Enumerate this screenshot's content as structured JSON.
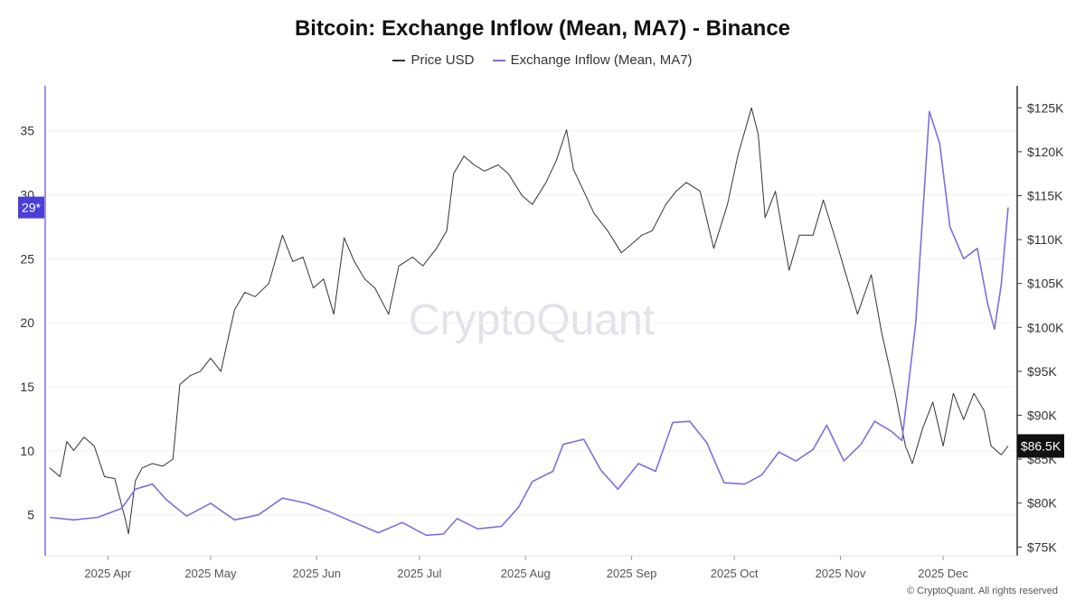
{
  "title": "Bitcoin: Exchange Inflow (Mean, MA7) - Binance",
  "legend": [
    {
      "label": "Price USD",
      "color": "#333333"
    },
    {
      "label": "Exchange Inflow (Mean, MA7)",
      "color": "#7b6fe0"
    }
  ],
  "watermark": "CryptoQuant",
  "copyright": "© CryptoQuant. All rights reserved",
  "chart_data": {
    "type": "line",
    "title": "Bitcoin: Exchange Inflow (Mean, MA7) - Binance",
    "x_range": [
      "2025-03-15",
      "2025-12-20"
    ],
    "x_tick_labels": [
      "2025 Apr",
      "2025 May",
      "2025 Jun",
      "2025 Jul",
      "2025 Aug",
      "2025 Sep",
      "2025 Oct",
      "2025 Nov",
      "2025 Dec"
    ],
    "x_tick_dates": [
      "2025-04-01",
      "2025-05-01",
      "2025-06-01",
      "2025-07-01",
      "2025-08-01",
      "2025-09-01",
      "2025-10-01",
      "2025-11-01",
      "2025-12-01"
    ],
    "left_axis": {
      "ticks": [
        5,
        10,
        15,
        20,
        25,
        30,
        35
      ],
      "ylim": [
        1.8,
        38.5
      ],
      "current_label": "29*",
      "current_value": 29
    },
    "right_axis": {
      "ticks": [
        75000,
        80000,
        85000,
        90000,
        95000,
        100000,
        105000,
        110000,
        115000,
        120000,
        125000
      ],
      "tick_labels": [
        "$75K",
        "$80K",
        "$85K",
        "$90K",
        "$95K",
        "$100K",
        "$105K",
        "$110K",
        "$115K",
        "$120K",
        "$125K"
      ],
      "ylim": [
        74000,
        127500
      ],
      "current_label": "$86.5K",
      "current_value": 86500
    },
    "series": [
      {
        "name": "Price USD",
        "axis": "right",
        "color": "#333333",
        "points": [
          [
            "2025-03-15",
            84000
          ],
          [
            "2025-03-18",
            83000
          ],
          [
            "2025-03-20",
            87000
          ],
          [
            "2025-03-22",
            86000
          ],
          [
            "2025-03-25",
            87500
          ],
          [
            "2025-03-28",
            86500
          ],
          [
            "2025-03-31",
            83000
          ],
          [
            "2025-04-03",
            82800
          ],
          [
            "2025-04-06",
            78300
          ],
          [
            "2025-04-07",
            76500
          ],
          [
            "2025-04-09",
            82500
          ],
          [
            "2025-04-11",
            84000
          ],
          [
            "2025-04-14",
            84500
          ],
          [
            "2025-04-17",
            84200
          ],
          [
            "2025-04-20",
            85000
          ],
          [
            "2025-04-22",
            93500
          ],
          [
            "2025-04-25",
            94500
          ],
          [
            "2025-04-28",
            95000
          ],
          [
            "2025-05-01",
            96500
          ],
          [
            "2025-05-04",
            95000
          ],
          [
            "2025-05-08",
            102000
          ],
          [
            "2025-05-11",
            104000
          ],
          [
            "2025-05-14",
            103500
          ],
          [
            "2025-05-18",
            105000
          ],
          [
            "2025-05-22",
            110500
          ],
          [
            "2025-05-25",
            107500
          ],
          [
            "2025-05-28",
            108000
          ],
          [
            "2025-05-31",
            104500
          ],
          [
            "2025-06-03",
            105500
          ],
          [
            "2025-06-06",
            101500
          ],
          [
            "2025-06-09",
            110200
          ],
          [
            "2025-06-12",
            107500
          ],
          [
            "2025-06-15",
            105500
          ],
          [
            "2025-06-18",
            104500
          ],
          [
            "2025-06-22",
            101500
          ],
          [
            "2025-06-25",
            107000
          ],
          [
            "2025-06-29",
            108000
          ],
          [
            "2025-07-02",
            107000
          ],
          [
            "2025-07-06",
            109000
          ],
          [
            "2025-07-09",
            111000
          ],
          [
            "2025-07-11",
            117500
          ],
          [
            "2025-07-14",
            119500
          ],
          [
            "2025-07-17",
            118500
          ],
          [
            "2025-07-20",
            117800
          ],
          [
            "2025-07-24",
            118500
          ],
          [
            "2025-07-27",
            117500
          ],
          [
            "2025-07-31",
            115000
          ],
          [
            "2025-08-03",
            114000
          ],
          [
            "2025-08-07",
            116500
          ],
          [
            "2025-08-10",
            119000
          ],
          [
            "2025-08-13",
            122500
          ],
          [
            "2025-08-15",
            118000
          ],
          [
            "2025-08-18",
            115500
          ],
          [
            "2025-08-21",
            113000
          ],
          [
            "2025-08-25",
            111000
          ],
          [
            "2025-08-29",
            108500
          ],
          [
            "2025-09-01",
            109500
          ],
          [
            "2025-09-04",
            110500
          ],
          [
            "2025-09-07",
            111000
          ],
          [
            "2025-09-11",
            114000
          ],
          [
            "2025-09-14",
            115500
          ],
          [
            "2025-09-17",
            116500
          ],
          [
            "2025-09-21",
            115500
          ],
          [
            "2025-09-25",
            109000
          ],
          [
            "2025-09-29",
            114000
          ],
          [
            "2025-10-02",
            119500
          ],
          [
            "2025-10-06",
            125000
          ],
          [
            "2025-10-08",
            122000
          ],
          [
            "2025-10-10",
            112500
          ],
          [
            "2025-10-13",
            115500
          ],
          [
            "2025-10-17",
            106500
          ],
          [
            "2025-10-20",
            110500
          ],
          [
            "2025-10-24",
            110500
          ],
          [
            "2025-10-27",
            114500
          ],
          [
            "2025-10-31",
            109500
          ],
          [
            "2025-11-03",
            105500
          ],
          [
            "2025-11-06",
            101500
          ],
          [
            "2025-11-10",
            106000
          ],
          [
            "2025-11-13",
            99500
          ],
          [
            "2025-11-17",
            92500
          ],
          [
            "2025-11-20",
            86500
          ],
          [
            "2025-11-22",
            84500
          ],
          [
            "2025-11-25",
            88500
          ],
          [
            "2025-11-28",
            91500
          ],
          [
            "2025-12-01",
            86500
          ],
          [
            "2025-12-04",
            92500
          ],
          [
            "2025-12-07",
            89500
          ],
          [
            "2025-12-10",
            92500
          ],
          [
            "2025-12-13",
            90500
          ],
          [
            "2025-12-15",
            86500
          ],
          [
            "2025-12-18",
            85500
          ],
          [
            "2025-12-20",
            86500
          ]
        ]
      },
      {
        "name": "Exchange Inflow (Mean, MA7)",
        "axis": "left",
        "color": "#7b6fe0",
        "points": [
          [
            "2025-03-15",
            4.8
          ],
          [
            "2025-03-22",
            4.6
          ],
          [
            "2025-03-29",
            4.8
          ],
          [
            "2025-04-05",
            5.5
          ],
          [
            "2025-04-09",
            7.0
          ],
          [
            "2025-04-14",
            7.4
          ],
          [
            "2025-04-18",
            6.2
          ],
          [
            "2025-04-24",
            4.9
          ],
          [
            "2025-05-01",
            5.9
          ],
          [
            "2025-05-08",
            4.6
          ],
          [
            "2025-05-15",
            5.0
          ],
          [
            "2025-05-22",
            6.3
          ],
          [
            "2025-05-29",
            5.9
          ],
          [
            "2025-06-05",
            5.2
          ],
          [
            "2025-06-12",
            4.4
          ],
          [
            "2025-06-19",
            3.6
          ],
          [
            "2025-06-26",
            4.4
          ],
          [
            "2025-07-03",
            3.4
          ],
          [
            "2025-07-08",
            3.5
          ],
          [
            "2025-07-12",
            4.7
          ],
          [
            "2025-07-18",
            3.9
          ],
          [
            "2025-07-25",
            4.1
          ],
          [
            "2025-07-30",
            5.6
          ],
          [
            "2025-08-03",
            7.6
          ],
          [
            "2025-08-09",
            8.4
          ],
          [
            "2025-08-12",
            10.5
          ],
          [
            "2025-08-18",
            10.9
          ],
          [
            "2025-08-23",
            8.5
          ],
          [
            "2025-08-28",
            7.0
          ],
          [
            "2025-09-03",
            9.0
          ],
          [
            "2025-09-08",
            8.4
          ],
          [
            "2025-09-13",
            12.2
          ],
          [
            "2025-09-18",
            12.3
          ],
          [
            "2025-09-23",
            10.6
          ],
          [
            "2025-09-28",
            7.5
          ],
          [
            "2025-10-04",
            7.4
          ],
          [
            "2025-10-09",
            8.1
          ],
          [
            "2025-10-14",
            9.9
          ],
          [
            "2025-10-19",
            9.2
          ],
          [
            "2025-10-24",
            10.1
          ],
          [
            "2025-10-28",
            12.0
          ],
          [
            "2025-11-02",
            9.2
          ],
          [
            "2025-11-07",
            10.5
          ],
          [
            "2025-11-11",
            12.3
          ],
          [
            "2025-11-16",
            11.5
          ],
          [
            "2025-11-19",
            10.8
          ],
          [
            "2025-11-23",
            20.0
          ],
          [
            "2025-11-27",
            36.5
          ],
          [
            "2025-11-30",
            34.0
          ],
          [
            "2025-12-03",
            27.5
          ],
          [
            "2025-12-07",
            25.0
          ],
          [
            "2025-12-11",
            25.8
          ],
          [
            "2025-12-14",
            21.5
          ],
          [
            "2025-12-16",
            19.5
          ],
          [
            "2025-12-18",
            23.0
          ],
          [
            "2025-12-20",
            29.0
          ]
        ]
      }
    ]
  }
}
